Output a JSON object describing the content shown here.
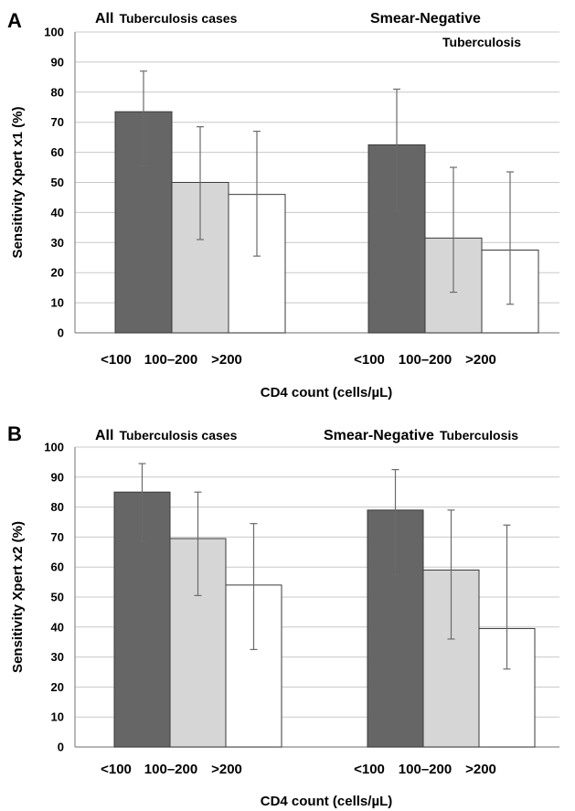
{
  "chart_data": [
    {
      "type": "bar",
      "panel_letter": "A",
      "groups": [
        {
          "title_bold": "All",
          "title_rest": "Tuberculosis cases"
        },
        {
          "title_bold": "Smear-Negative",
          "title_rest": "Tuberculosis"
        }
      ],
      "categories": [
        "<100",
        "100–200",
        ">200"
      ],
      "series": [
        {
          "values": [
            73.5,
            50,
            46
          ],
          "error_low": [
            55.5,
            31,
            25.5
          ],
          "error_high": [
            87,
            68.5,
            67
          ],
          "color": "#6b6b6b"
        },
        {
          "values": [
            62.5,
            31.5,
            27.5
          ],
          "error_low": [
            40.5,
            13.5,
            9.5
          ],
          "error_high": [
            81,
            55,
            53.5
          ],
          "color": "#6b6b6b"
        }
      ],
      "bar_colors": [
        "#666666",
        "#d6d6d6",
        "#ffffff"
      ],
      "xlabel": "CD4 count (cells/µL)",
      "ylabel": "Sensitivity  Xpert x1 (%)",
      "ylim": [
        0,
        100
      ],
      "yticks": [
        "0",
        "10",
        "20",
        "30",
        "40",
        "50",
        "60",
        "70",
        "80",
        "90",
        "100"
      ],
      "grid": true
    },
    {
      "type": "bar",
      "panel_letter": "B",
      "groups": [
        {
          "title_bold": "All",
          "title_rest": "Tuberculosis cases"
        },
        {
          "title_bold": "Smear-Negative",
          "title_rest": "Tuberculosis"
        }
      ],
      "categories": [
        "<100",
        "100–200",
        ">200"
      ],
      "series": [
        {
          "values": [
            85,
            69.5,
            54
          ],
          "error_low": [
            68.5,
            50.5,
            32.5
          ],
          "error_high": [
            94.5,
            85,
            74.5
          ],
          "color": "#6b6b6b"
        },
        {
          "values": [
            79,
            59,
            39.5
          ],
          "error_low": [
            57.5,
            36,
            26
          ],
          "error_high": [
            92.5,
            79,
            74
          ],
          "color": "#6b6b6b"
        }
      ],
      "bar_colors": [
        "#666666",
        "#d6d6d6",
        "#ffffff"
      ],
      "xlabel": "CD4 count (cells/µL)",
      "ylabel": "Sensitivity  Xpert x2 (%)",
      "ylim": [
        0,
        100
      ],
      "yticks": [
        "0",
        "10",
        "20",
        "30",
        "40",
        "50",
        "60",
        "70",
        "80",
        "90",
        "100"
      ],
      "grid": true
    }
  ]
}
